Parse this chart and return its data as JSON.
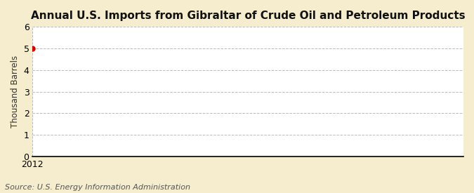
{
  "title": "Annual U.S. Imports from Gibraltar of Crude Oil and Petroleum Products",
  "ylabel": "Thousand Barrels",
  "source_text": "Source: U.S. Energy Information Administration",
  "x_data": [
    2012
  ],
  "y_data": [
    5
  ],
  "xlim": [
    2012,
    2013.5
  ],
  "ylim": [
    0,
    6
  ],
  "yticks": [
    0,
    1,
    2,
    3,
    4,
    5,
    6
  ],
  "xticks": [
    2012
  ],
  "marker_color": "#cc0000",
  "marker_size": 5,
  "background_color": "#f5edcd",
  "plot_bg_color": "#ffffff",
  "grid_color": "#bbbbbb",
  "title_fontsize": 11,
  "label_fontsize": 8.5,
  "tick_fontsize": 9,
  "source_fontsize": 8
}
